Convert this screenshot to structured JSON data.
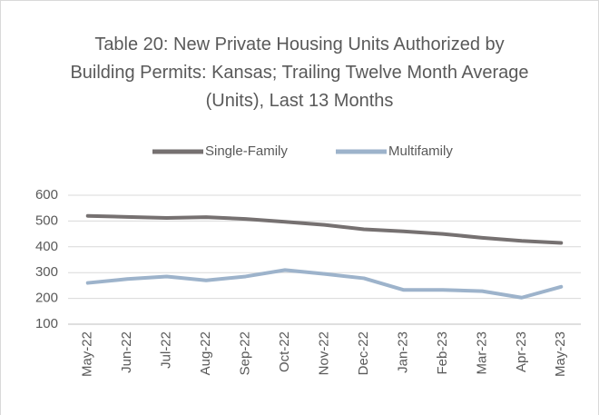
{
  "chart_data": {
    "type": "line",
    "title": "Table 20: New Private Housing Units Authorized by Building Permits: Kansas; Trailing Twelve Month Average (Units), Last 13 Months",
    "categories": [
      "May-22",
      "Jun-22",
      "Jul-22",
      "Aug-22",
      "Sep-22",
      "Oct-22",
      "Nov-22",
      "Dec-22",
      "Jan-23",
      "Feb-23",
      "Mar-23",
      "Apr-23",
      "May-23"
    ],
    "series": [
      {
        "name": "Single-Family",
        "color": "#767171",
        "values": [
          520,
          516,
          512,
          515,
          508,
          497,
          485,
          468,
          460,
          450,
          435,
          423,
          415
        ]
      },
      {
        "name": "Multifamily",
        "color": "#9db3cb",
        "values": [
          260,
          275,
          285,
          270,
          285,
          310,
          295,
          278,
          233,
          233,
          228,
          203,
          245
        ]
      }
    ],
    "ylim": [
      100,
      600
    ],
    "yticks": [
      100,
      200,
      300,
      400,
      500,
      600
    ],
    "grid": true,
    "legend": "top"
  }
}
